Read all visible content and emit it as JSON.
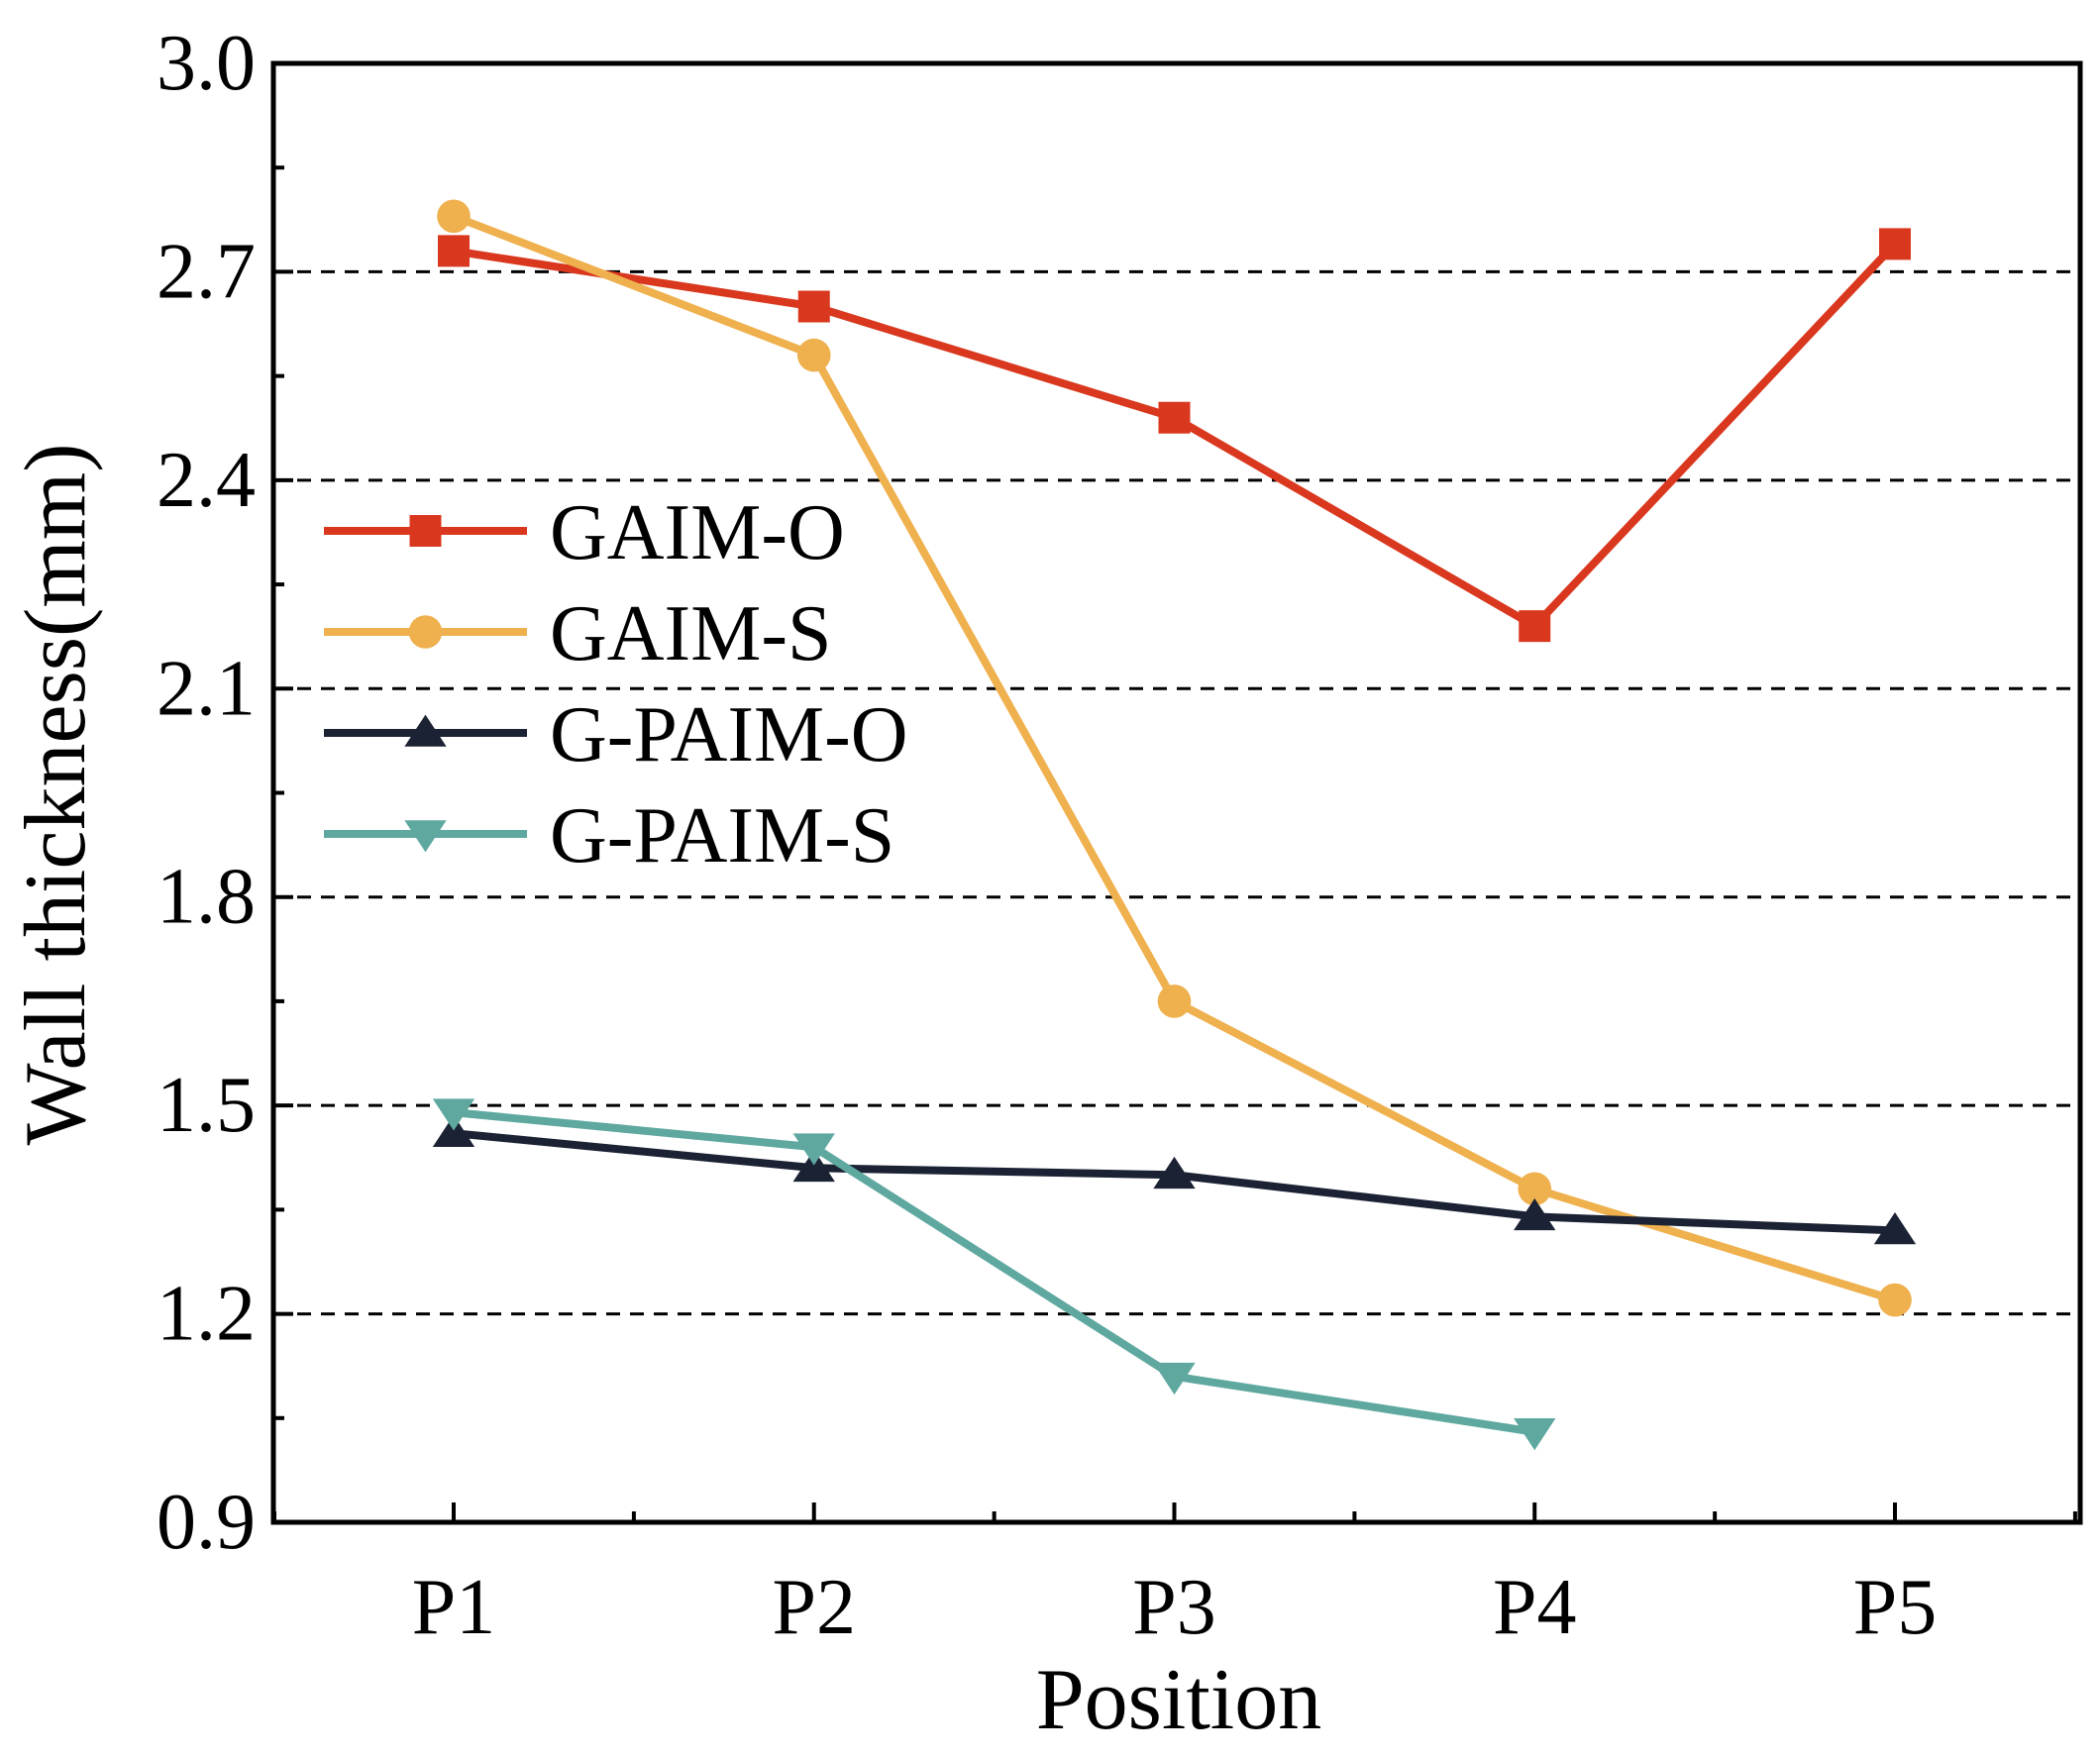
{
  "chart_data": {
    "type": "line",
    "title": "",
    "xlabel": "Position",
    "ylabel": "Wall thickness(mm)",
    "categories": [
      "P1",
      "P2",
      "P3",
      "P4",
      "P5"
    ],
    "ylim": [
      0.9,
      3.0
    ],
    "yticks": [
      0.9,
      1.2,
      1.5,
      1.8,
      2.1,
      2.4,
      2.7,
      3.0
    ],
    "ytick_labels": [
      "0.9",
      "1.2",
      "1.5",
      "1.8",
      "2.1",
      "2.4",
      "2.7",
      "3.0"
    ],
    "gridlines_y": [
      1.2,
      1.5,
      1.8,
      2.1,
      2.4,
      2.7
    ],
    "grid": "dashed horizontal",
    "legend_position": "center-left",
    "series": [
      {
        "name": "GAIM-O",
        "color": "#d9381e",
        "marker": "square",
        "values": [
          2.73,
          2.65,
          2.49,
          2.19,
          2.74
        ]
      },
      {
        "name": "GAIM-S",
        "color": "#efb04e",
        "marker": "circle",
        "values": [
          2.78,
          2.58,
          1.65,
          1.38,
          1.22
        ]
      },
      {
        "name": "G-PAIM-O",
        "color": "#1b2233",
        "marker": "triangle-up",
        "values": [
          1.46,
          1.41,
          1.4,
          1.34,
          1.32
        ]
      },
      {
        "name": "G-PAIM-S",
        "color": "#5fa8a0",
        "marker": "triangle-down",
        "values": [
          1.49,
          1.44,
          1.11,
          1.03,
          null
        ]
      }
    ]
  }
}
